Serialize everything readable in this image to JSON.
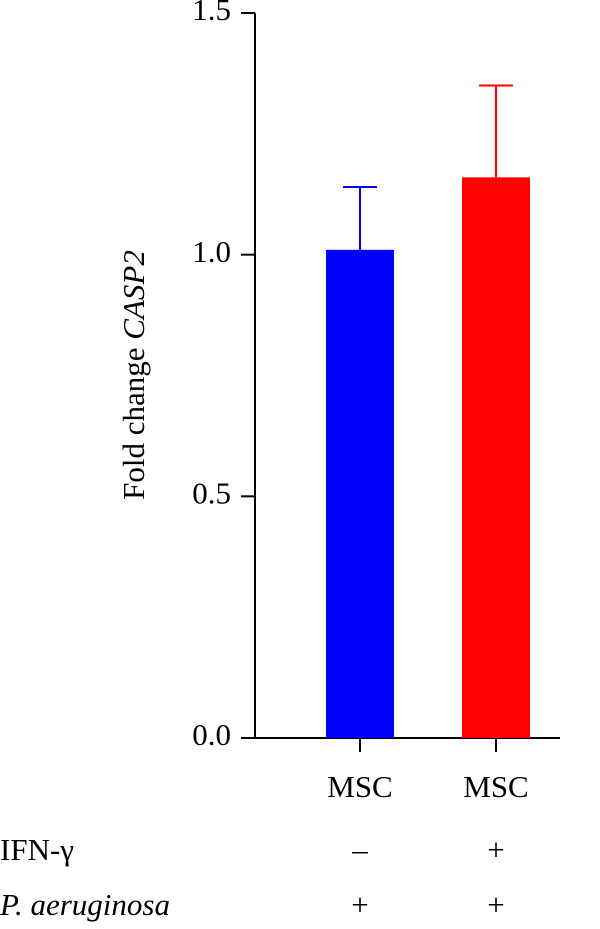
{
  "chart_data": {
    "type": "bar",
    "y_label": "Fold change",
    "y_label_gene": "CASP2",
    "categories": [
      "MSC",
      "MSC"
    ],
    "values": [
      1.01,
      1.16
    ],
    "errors": [
      0.13,
      0.19
    ],
    "colors": [
      "#0000ff",
      "#ff0000"
    ],
    "ylim": [
      0,
      1.5
    ],
    "yticks": [
      {
        "value": 0,
        "label": "0.0"
      },
      0.5,
      {
        "value": 1,
        "label": "1.0"
      },
      1.5
    ],
    "conditions": [
      {
        "label": "IFN-γ",
        "signs": [
          "–",
          "+"
        ]
      },
      {
        "label": "P. aeruginosa",
        "signs": [
          "+",
          "+"
        ]
      }
    ]
  }
}
